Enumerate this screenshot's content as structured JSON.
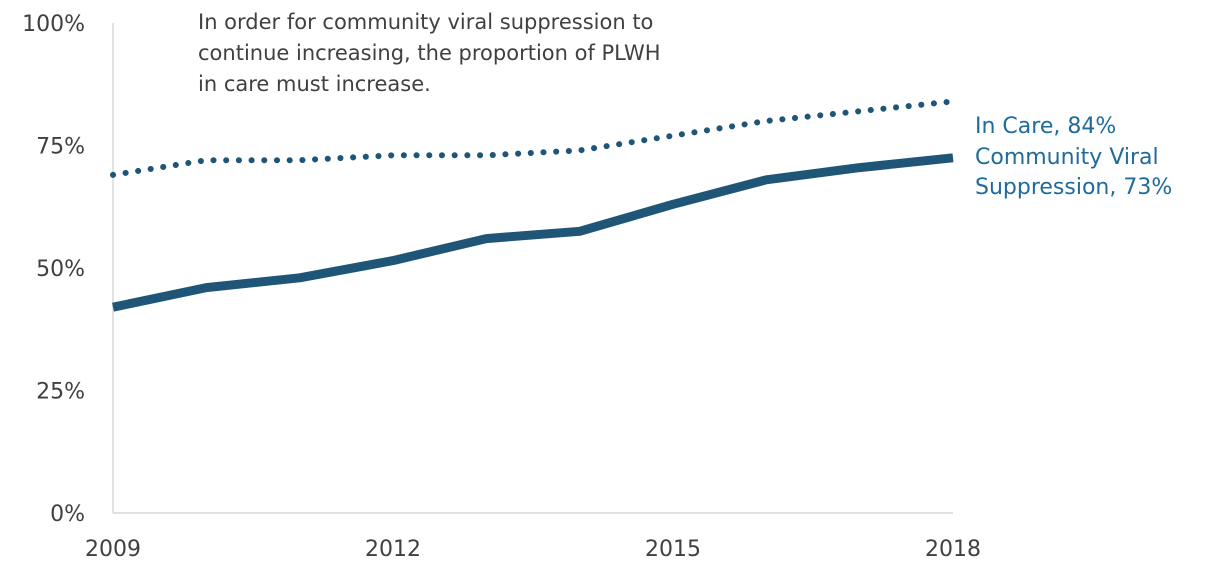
{
  "chart_data": {
    "type": "line",
    "x": [
      2009,
      2010,
      2011,
      2012,
      2013,
      2014,
      2015,
      2016,
      2017,
      2018
    ],
    "xticks": [
      2009,
      2012,
      2015,
      2018
    ],
    "xtick_labels": [
      "2009",
      "2012",
      "2015",
      "2018"
    ],
    "ylim": [
      0,
      100
    ],
    "yticks": [
      0,
      25,
      50,
      75,
      100
    ],
    "ytick_labels": [
      "0%",
      "25%",
      "50%",
      "75%",
      "100%"
    ],
    "xlabel": "",
    "ylabel": "",
    "grid": false,
    "legend": "none (series labeled at line ends)",
    "annotation": {
      "lines": [
        "In order for community viral suppression to",
        "continue increasing, the proportion of PLWH",
        "in care must increase."
      ]
    },
    "series": [
      {
        "key": "in_care",
        "label_lines": [
          "In Care, 84%"
        ],
        "style": "dotted",
        "color": "#1f5677",
        "values": [
          69,
          72,
          72,
          73,
          73,
          74,
          77,
          80,
          82,
          84
        ]
      },
      {
        "key": "viral_suppression",
        "label_lines": [
          "Community Viral",
          "Suppression, 73%"
        ],
        "style": "solid",
        "color": "#1f5677",
        "values": [
          42,
          46,
          48,
          51.5,
          56,
          57.5,
          63,
          68,
          70.5,
          72.5
        ]
      }
    ],
    "label_color": "#1f6b9a"
  }
}
